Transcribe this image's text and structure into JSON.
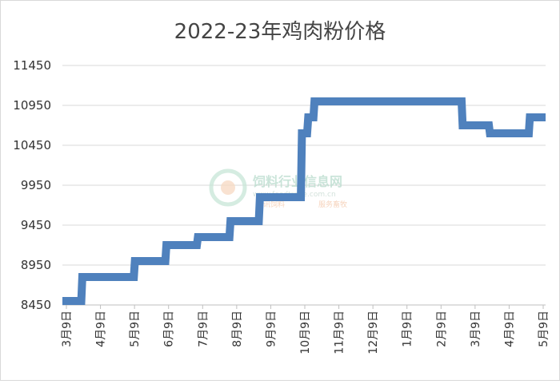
{
  "chart_data": {
    "type": "line",
    "title": "2022-23年鸡肉粉价格",
    "x_axis_labels": [
      "3月9日",
      "4月9日",
      "5月9日",
      "6月9日",
      "7月9日",
      "8月9日",
      "9月9日",
      "10月9日",
      "11月9日",
      "12月9日",
      "1月9日",
      "2月9日",
      "3月9日",
      "4月9日",
      "5月9日"
    ],
    "y_ticks": [
      8450,
      8950,
      9450,
      9950,
      10450,
      10950,
      11450
    ],
    "ylim": [
      8450,
      11450
    ],
    "grid": "horizontal",
    "series": [
      {
        "color": "#4f81bd",
        "x": [
          "2022-03-01",
          "2022-03-19",
          "2022-03-20",
          "2022-05-08",
          "2022-05-09",
          "2022-06-07",
          "2022-06-08",
          "2022-07-07",
          "2022-07-08",
          "2022-08-07",
          "2022-08-08",
          "2022-09-04",
          "2022-09-05",
          "2022-10-14",
          "2022-10-15",
          "2022-10-20",
          "2022-10-21",
          "2022-10-26",
          "2022-10-27",
          "2023-01-21",
          "2023-01-22",
          "2023-03-16",
          "2023-03-17",
          "2023-04-11",
          "2023-04-12",
          "2023-05-19",
          "2023-05-20",
          "2023-06-04"
        ],
        "y": [
          8500,
          8500,
          8800,
          8800,
          9000,
          9000,
          9200,
          9200,
          9300,
          9300,
          9500,
          9500,
          9800,
          9800,
          10600,
          10600,
          10800,
          10800,
          11000,
          11000,
          11000,
          11000,
          10700,
          10700,
          10600,
          10600,
          10800,
          10800
        ]
      }
    ]
  },
  "watermark": {
    "name": "饲料行业信息网",
    "url": "www.feedtrade.com.cn",
    "slogans": [
      "资讯饲料",
      "服务畜牧"
    ]
  }
}
